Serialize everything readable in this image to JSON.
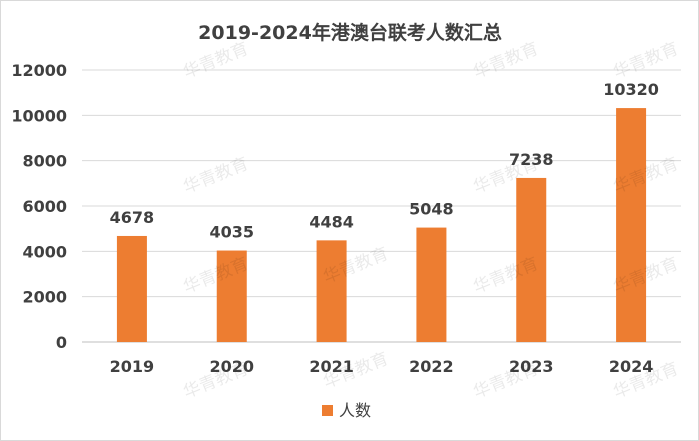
{
  "chart_data": {
    "type": "bar",
    "title": "2019-2024年港澳台联考人数汇总",
    "categories": [
      "2019",
      "2020",
      "2021",
      "2022",
      "2023",
      "2024"
    ],
    "series": [
      {
        "name": "人数",
        "values": [
          4678,
          4035,
          4484,
          5048,
          7238,
          10320
        ],
        "color": "#ED7D31"
      }
    ],
    "yticks": [
      "0",
      "2000",
      "4000",
      "6000",
      "8000",
      "10000",
      "12000"
    ],
    "ylim": [
      0,
      12000
    ],
    "grid": true,
    "legend": "bottom",
    "data_labels": true
  },
  "watermark": "华青教育"
}
